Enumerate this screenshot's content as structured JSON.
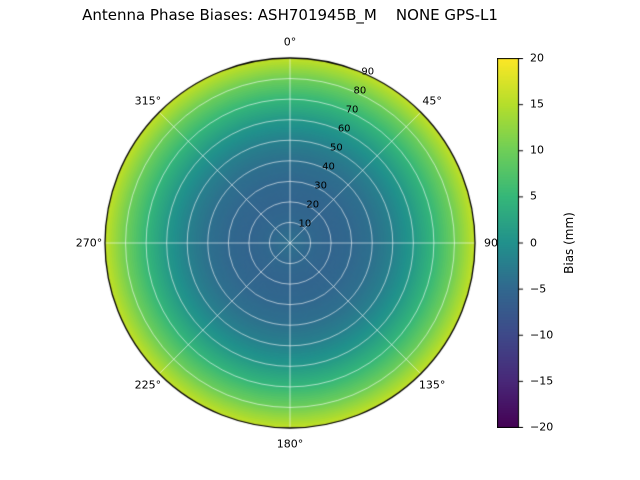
{
  "page": {
    "background": "#ffffff"
  },
  "chart_data": {
    "type": "heatmap",
    "projection": "polar",
    "title": "Antenna Phase Biases: ASH701945B_M    NONE GPS-L1",
    "colormap": "viridis",
    "clim": [
      -20,
      20
    ],
    "grid_on": true,
    "grid_color": "rgba(255,255,255,0.65)",
    "outline_color": "#000000",
    "colorbar": {
      "label": "Bias (mm)",
      "position": "right",
      "ticks": [
        -20,
        -15,
        -10,
        -5,
        0,
        5,
        10,
        15,
        20
      ],
      "tick_labels": [
        "−20",
        "−15",
        "−10",
        "−5",
        "0",
        "5",
        "10",
        "15",
        "20"
      ]
    },
    "angular_ticks": [
      {
        "deg": 0,
        "label": "0°"
      },
      {
        "deg": 45,
        "label": "45°"
      },
      {
        "deg": 90,
        "label": "90"
      },
      {
        "deg": 135,
        "label": "135°"
      },
      {
        "deg": 180,
        "label": "180°"
      },
      {
        "deg": 225,
        "label": "225°"
      },
      {
        "deg": 270,
        "label": "270°"
      },
      {
        "deg": 315,
        "label": "315°"
      }
    ],
    "radial_ticks": [
      {
        "zenith": 10,
        "label": "10"
      },
      {
        "zenith": 20,
        "label": "20"
      },
      {
        "zenith": 30,
        "label": "30"
      },
      {
        "zenith": 40,
        "label": "40"
      },
      {
        "zenith": 50,
        "label": "50"
      },
      {
        "zenith": 60,
        "label": "60"
      },
      {
        "zenith": 70,
        "label": "70"
      },
      {
        "zenith": 80,
        "label": "80"
      },
      {
        "zenith": 90,
        "label": "90"
      }
    ],
    "rlabel_angle_deg": 22.5,
    "rmax": 90,
    "viridis_anchors": [
      "#440154",
      "#482878",
      "#3e4989",
      "#31688e",
      "#21918c",
      "#35b779",
      "#6ece58",
      "#b5de2b",
      "#fde725"
    ],
    "profile": {
      "note": "azimuthally symmetric bias vs zenith angle, estimated from colors",
      "zenith_deg": [
        0,
        10,
        20,
        30,
        40,
        50,
        60,
        70,
        80,
        90
      ],
      "bias_mm": [
        -4,
        -5,
        -5.5,
        -5,
        -4,
        -2,
        1,
        5,
        10,
        16
      ]
    }
  }
}
